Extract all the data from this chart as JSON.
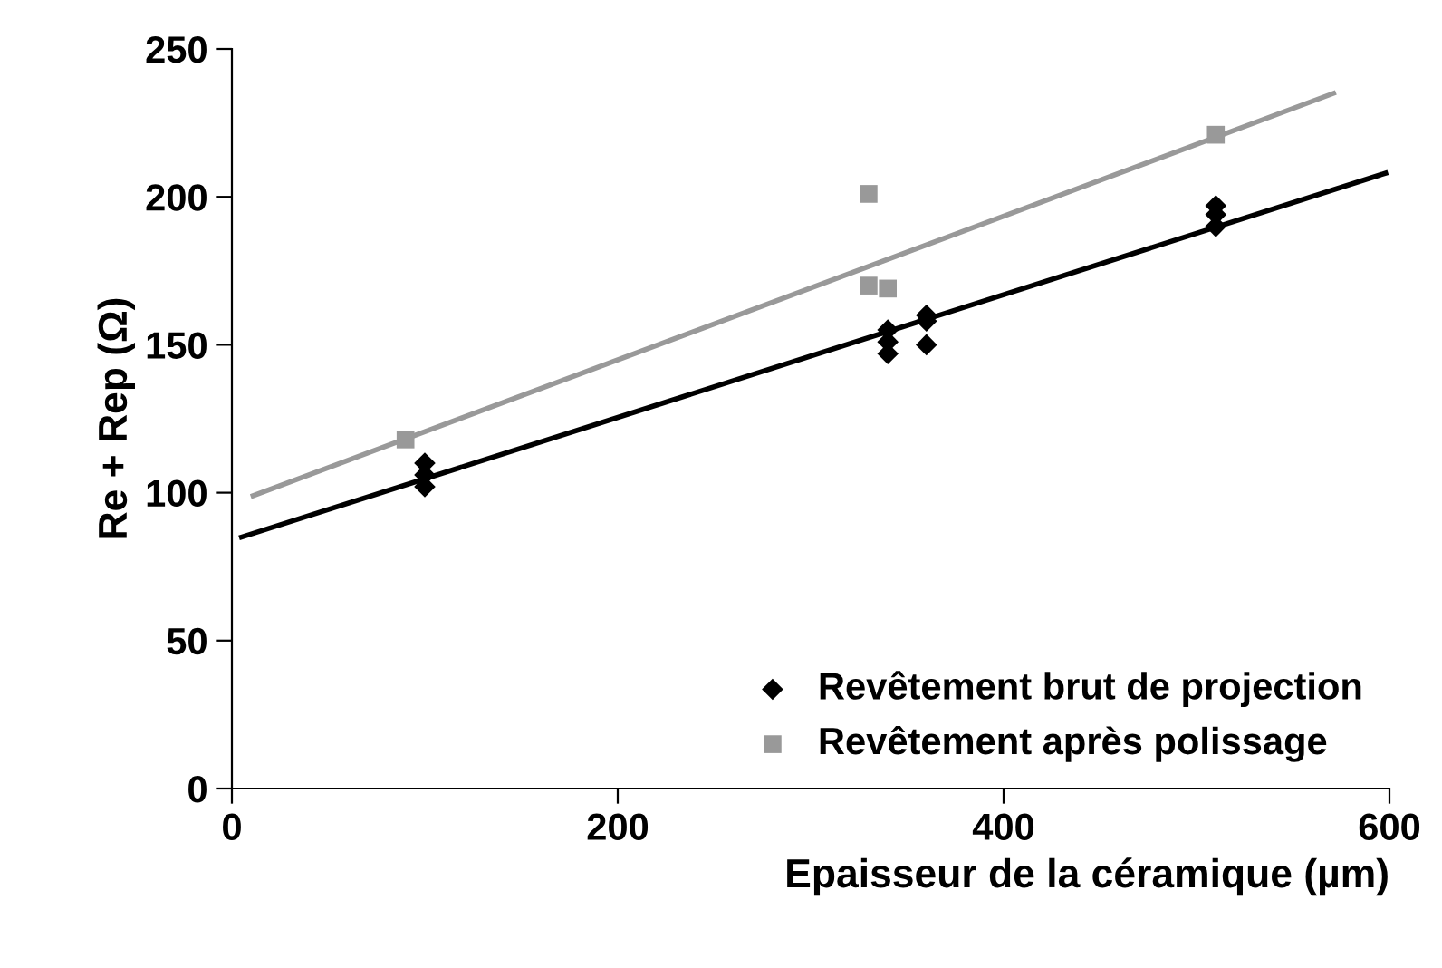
{
  "chart_data": {
    "type": "scatter",
    "xlabel": "Epaisseur de la céramique (µm)",
    "ylabel": "Re + Rep (Ω)",
    "xlim": [
      0,
      600
    ],
    "xticks": [
      0,
      200,
      400,
      600
    ],
    "ylim": [
      0,
      250
    ],
    "yticks": [
      0,
      50,
      100,
      150,
      200,
      250
    ],
    "grid": false,
    "legend": "bottom right",
    "series": [
      {
        "name": "Revêtement brut de projection",
        "color": "#000000",
        "marker": "diamond",
        "x": [
          100,
          100,
          100,
          340,
          340,
          340,
          360,
          360,
          360,
          510,
          510,
          510
        ],
        "values": [
          110,
          106,
          102,
          155,
          151,
          147,
          160,
          158,
          150,
          197,
          194,
          190
        ]
      },
      {
        "name": "Revêtement après polissage",
        "color": "#999999",
        "marker": "square",
        "x": [
          90,
          330,
          330,
          340,
          510
        ],
        "values": [
          118,
          201,
          170,
          169,
          221
        ]
      },
      {
        "type": "line",
        "color": "#000000",
        "marker": "none",
        "line_style": "solid",
        "x": [
          5,
          598
        ],
        "values": [
          85,
          208
        ]
      },
      {
        "type": "line",
        "color": "#999999",
        "marker": "none",
        "line_style": "solid",
        "x": [
          11,
          571
        ],
        "values": [
          99,
          235
        ]
      }
    ]
  }
}
